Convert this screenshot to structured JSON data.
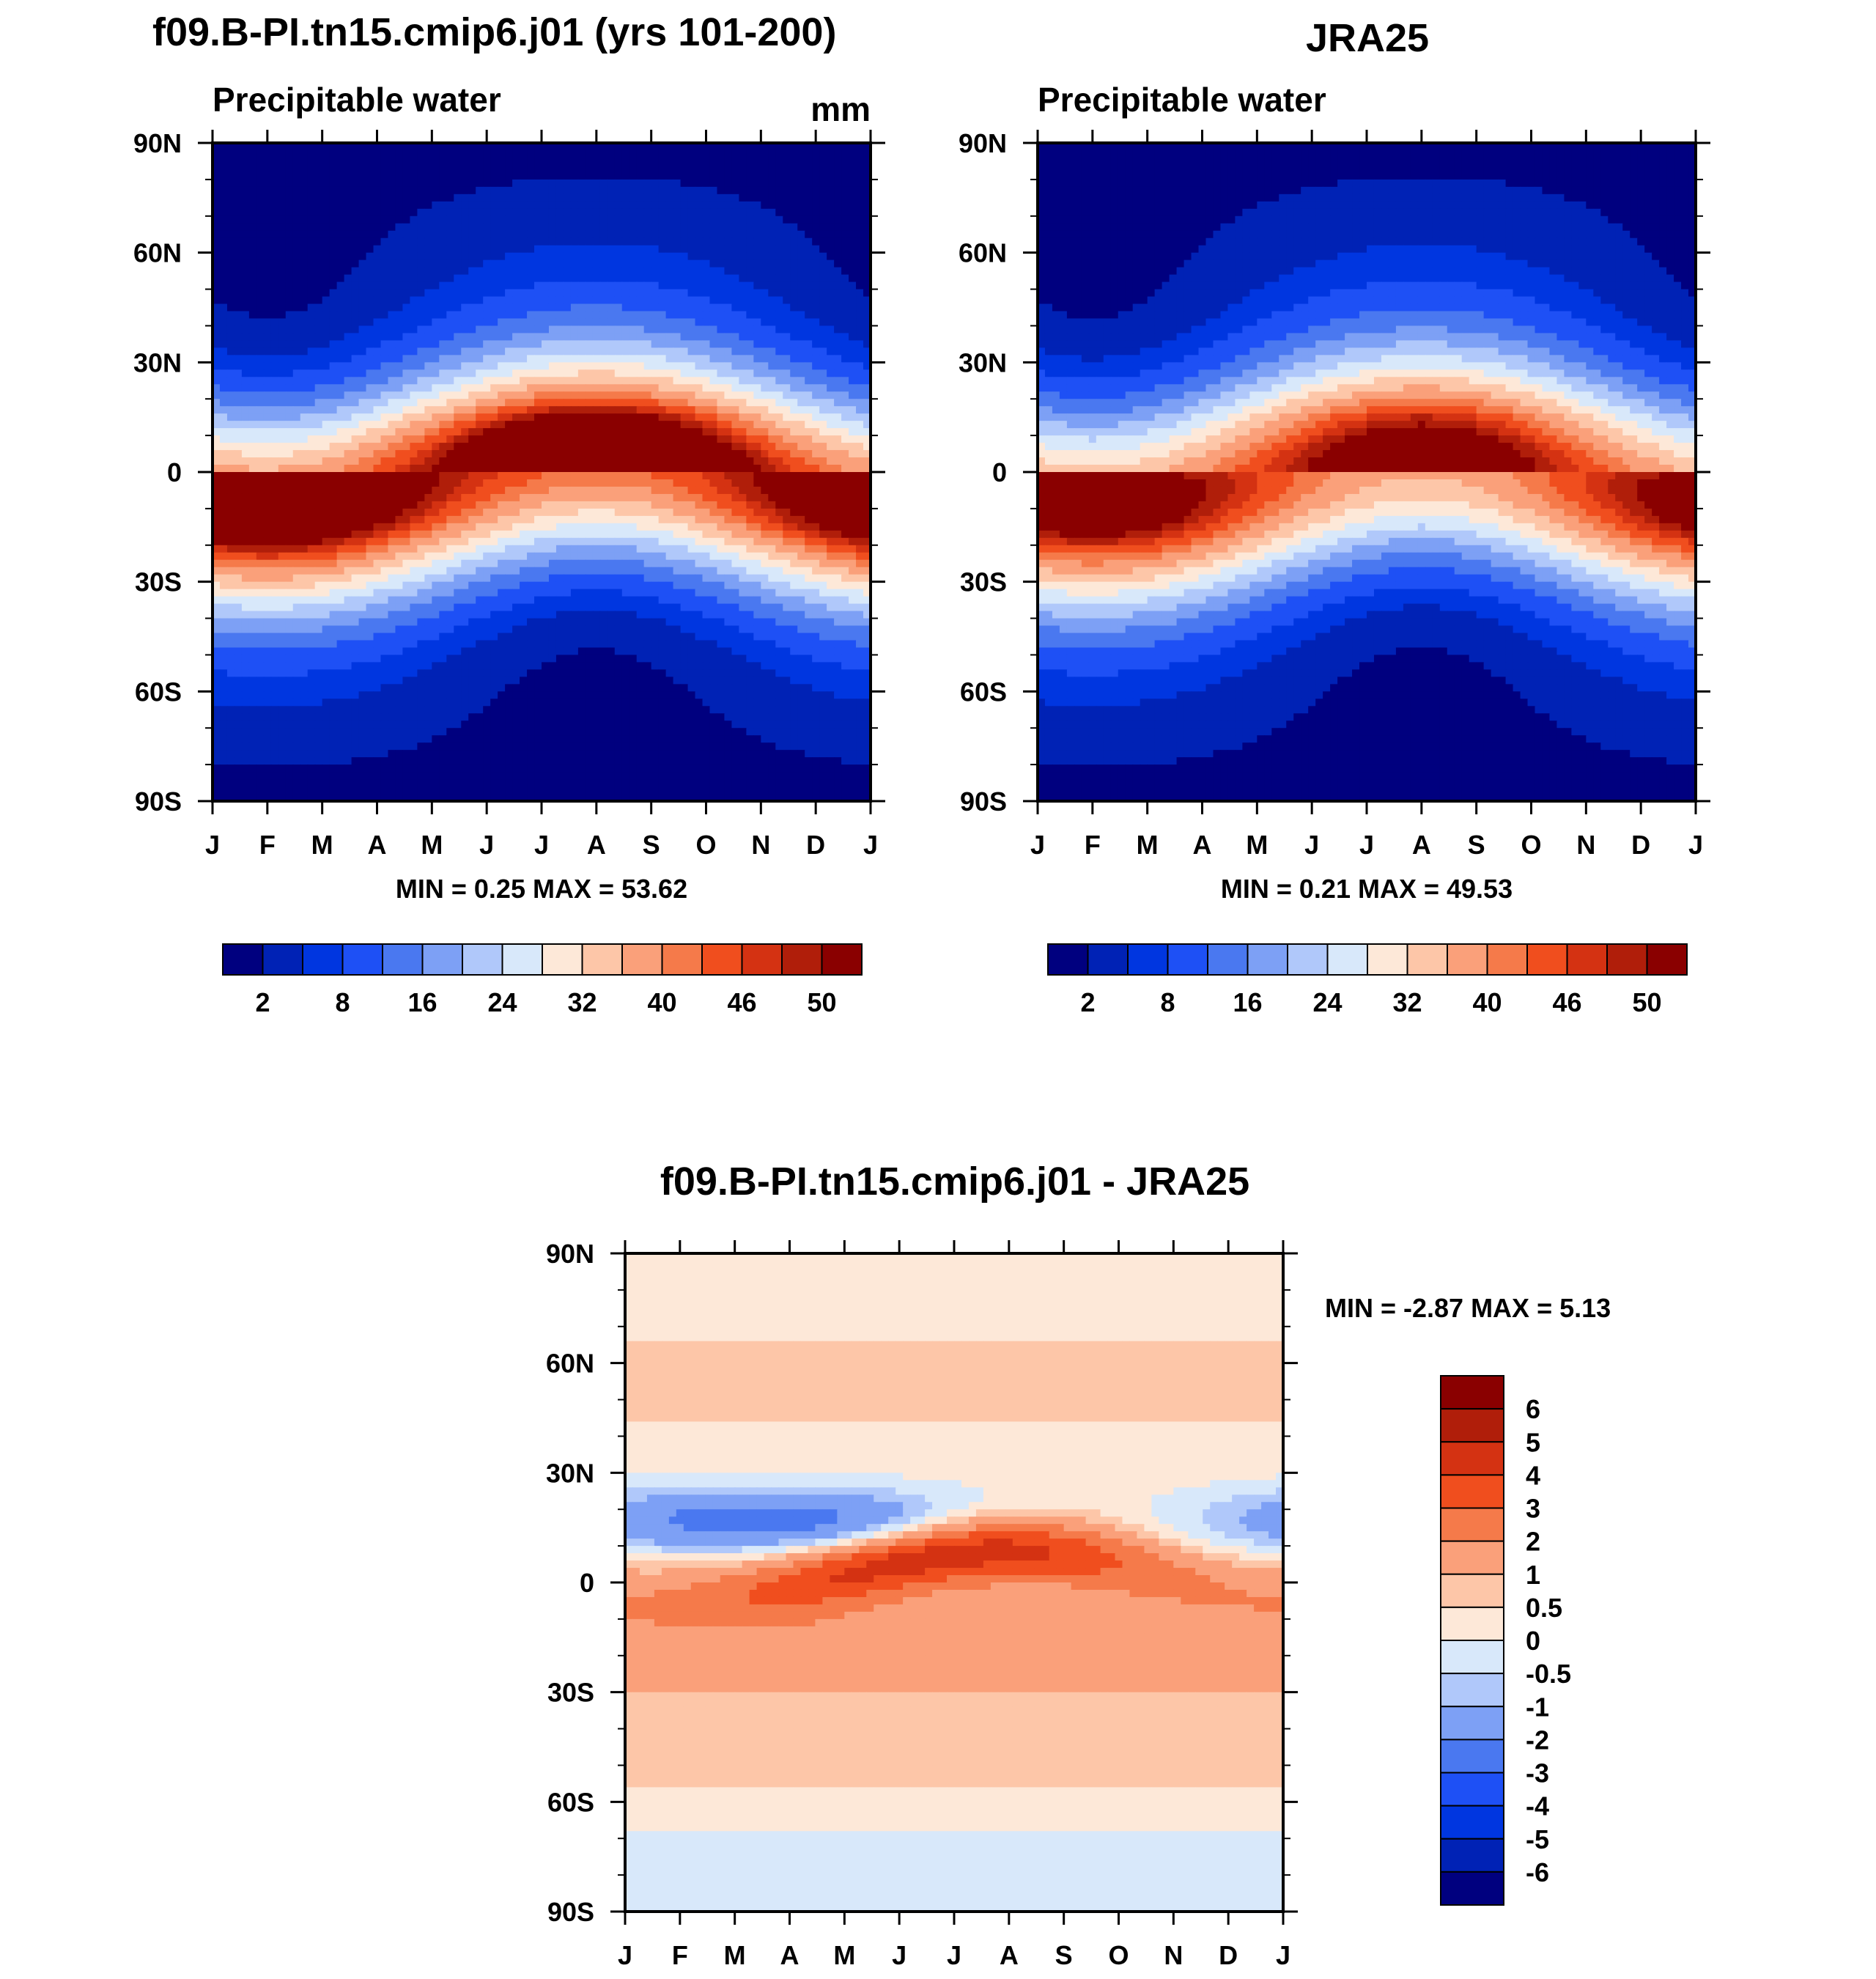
{
  "chart_data": [
    {
      "type": "heatmap",
      "title": "f09.B-PI.tn15.cmip6.j01 (yrs 101-200)",
      "subtitle": "Precipitable water",
      "units": "mm",
      "x_ticks": [
        "J",
        "F",
        "M",
        "A",
        "M",
        "J",
        "J",
        "A",
        "S",
        "O",
        "N",
        "D",
        "J"
      ],
      "y_ticks": [
        "90N",
        "60N",
        "30N",
        "0",
        "30S",
        "60S",
        "90S"
      ],
      "ylim": [
        -90,
        90
      ],
      "stats": {
        "label": "MIN =   0.25 MAX =  53.62",
        "min": 0.25,
        "max": 53.62
      },
      "colorbar": {
        "orientation": "horizontal",
        "levels": [
          "2",
          "8",
          "16",
          "24",
          "32",
          "40",
          "46",
          "50"
        ],
        "colors": [
          "#00007f",
          "#0022b5",
          "#0036e0",
          "#1e50f5",
          "#4a78f0",
          "#7da0f5",
          "#b0c8fa",
          "#d8e8fa",
          "#fde8d8",
          "#fdc6a8",
          "#faa07a",
          "#f57a4a",
          "#f04e1e",
          "#d43212",
          "#b01e0a",
          "#8a0000"
        ]
      },
      "field": {
        "equator_peak_mm": 53.6,
        "itcz_shift": "north in boreal summer"
      }
    },
    {
      "type": "heatmap",
      "title": "JRA25",
      "subtitle": "Precipitable water",
      "x_ticks": [
        "J",
        "F",
        "M",
        "A",
        "M",
        "J",
        "J",
        "A",
        "S",
        "O",
        "N",
        "D",
        "J"
      ],
      "y_ticks": [
        "90N",
        "60N",
        "30N",
        "0",
        "30S",
        "60S",
        "90S"
      ],
      "ylim": [
        -90,
        90
      ],
      "stats": {
        "label": "MIN =   0.21 MAX =  49.53",
        "min": 0.21,
        "max": 49.53
      },
      "colorbar": {
        "orientation": "horizontal",
        "levels": [
          "2",
          "8",
          "16",
          "24",
          "32",
          "40",
          "46",
          "50"
        ]
      },
      "field": {
        "equator_peak_mm": 49.5
      }
    },
    {
      "type": "heatmap",
      "title": "f09.B-PI.tn15.cmip6.j01 - JRA25",
      "x_ticks": [
        "J",
        "F",
        "M",
        "A",
        "M",
        "J",
        "J",
        "A",
        "S",
        "O",
        "N",
        "D",
        "J"
      ],
      "y_ticks": [
        "90N",
        "60N",
        "30N",
        "0",
        "30S",
        "60S",
        "90S"
      ],
      "ylim": [
        -90,
        90
      ],
      "stats": {
        "label": "MIN =  -2.87 MAX =    5.13",
        "min": -2.87,
        "max": 5.13
      },
      "colorbar": {
        "orientation": "vertical",
        "levels": [
          "6",
          "5",
          "4",
          "3",
          "2",
          "1",
          "0.5",
          "0",
          "-0.5",
          "-1",
          "-2",
          "-3",
          "-4",
          "-5",
          "-6"
        ],
        "colors": [
          "#8a0000",
          "#b01e0a",
          "#d43212",
          "#f04e1e",
          "#f57a4a",
          "#faa07a",
          "#fdc6a8",
          "#fde8d8",
          "#d8e8fa",
          "#b0c8fa",
          "#7da0f5",
          "#4a78f0",
          "#1e50f5",
          "#0036e0",
          "#0022b5",
          "#00007f"
        ]
      },
      "field": {
        "max_positive_region": "0-15N, May-Sep",
        "max_negative_region": "10-25N, Jan-Apr"
      }
    }
  ]
}
